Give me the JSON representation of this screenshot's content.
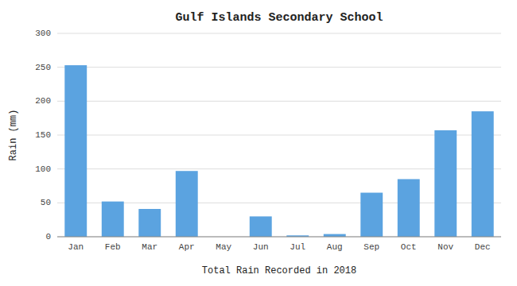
{
  "chart_data": {
    "type": "bar",
    "title": "Gulf Islands Secondary School",
    "xlabel": "Total Rain Recorded in 2018",
    "ylabel": "Rain (mm)",
    "categories": [
      "Jan",
      "Feb",
      "Mar",
      "Apr",
      "May",
      "Jun",
      "Jul",
      "Aug",
      "Sep",
      "Oct",
      "Nov",
      "Dec"
    ],
    "values": [
      253,
      52,
      41,
      97,
      0,
      30,
      2,
      4,
      65,
      85,
      157,
      185
    ],
    "color": "#5BA3E0",
    "ylim": [
      0,
      300
    ],
    "yticks": [
      0,
      50,
      100,
      150,
      200,
      250,
      300
    ],
    "grid": true
  }
}
